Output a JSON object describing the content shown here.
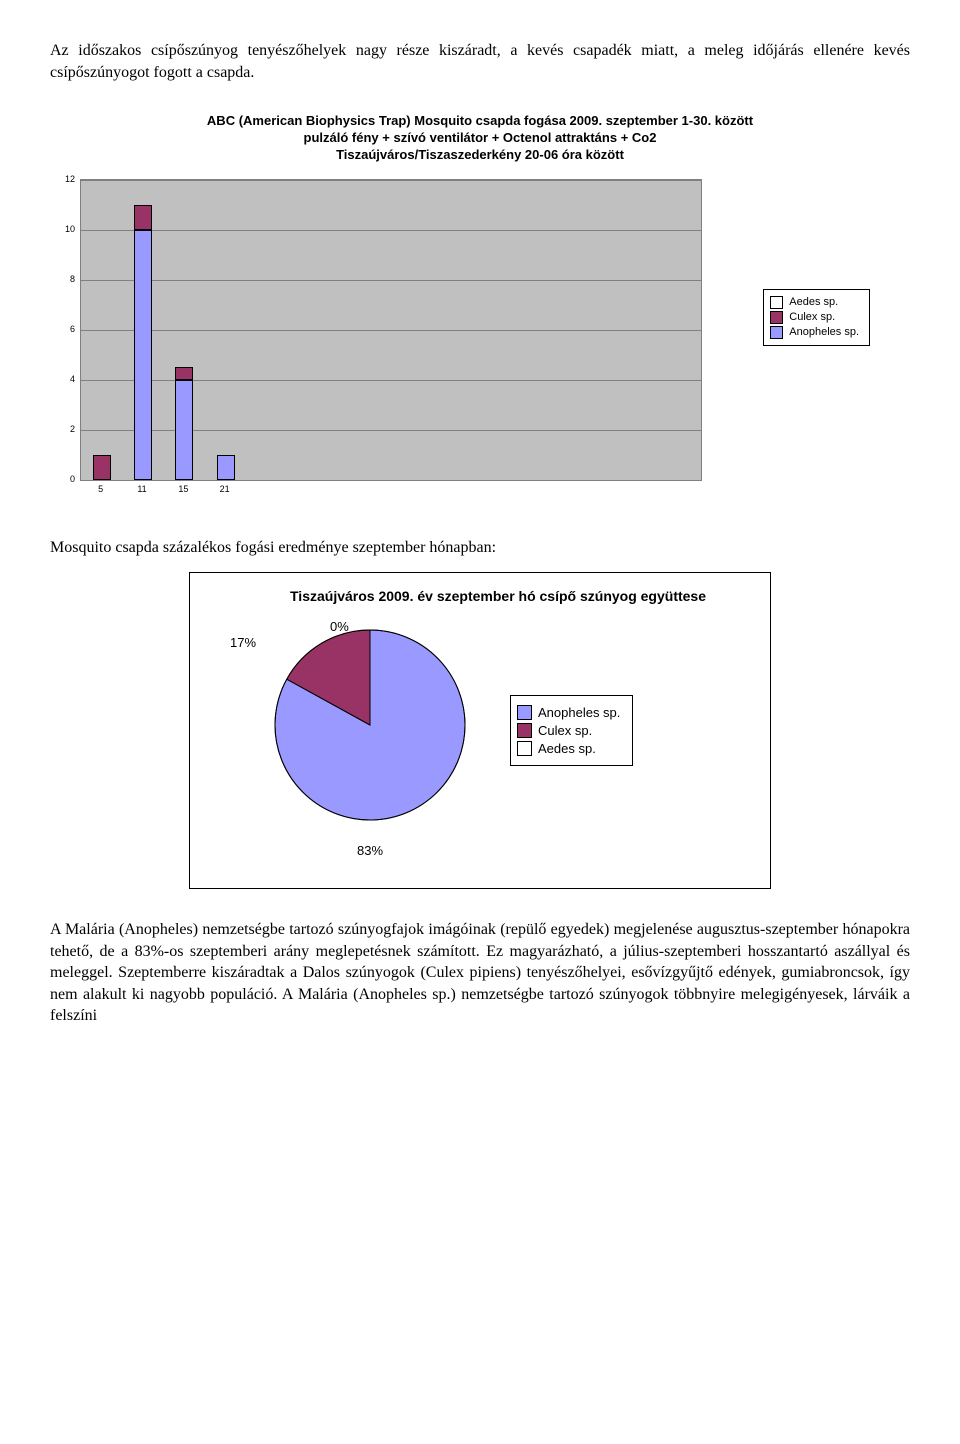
{
  "intro_paragraph": "Az időszakos csípőszúnyog tenyészőhelyek nagy része kiszáradt, a kevés csapadék miatt, a meleg időjárás ellenére kevés csípőszúnyogot fogott a csapda.",
  "bar_chart": {
    "type": "bar_stacked",
    "title_line1": "ABC (American Biophysics Trap) Mosquito csapda fogása 2009. szeptember 1-30. között",
    "title_line2": "pulzáló fény + szívó ventilátor + Octenol attraktáns + Co2",
    "title_line3": "Tiszaújváros/Tiszaszederkény 20-06 óra között",
    "ylim": [
      0,
      12
    ],
    "ytick_step": 2,
    "yticks": [
      0,
      2,
      4,
      6,
      8,
      10,
      12
    ],
    "x_labels": [
      "5",
      "11",
      "15",
      "21"
    ],
    "series_colors": {
      "aedes": "#ffffff",
      "culex": "#993366",
      "anopheles": "#9999ff"
    },
    "plot_bg": "#c0c0c0",
    "grid_color": "#808080",
    "legend": [
      {
        "label": "Aedes sp.",
        "color": "#ffffff"
      },
      {
        "label": "Culex sp.",
        "color": "#993366"
      },
      {
        "label": "Anopheles sp.",
        "color": "#9999ff"
      }
    ],
    "bars": [
      {
        "x": "5",
        "anopheles": 0,
        "culex": 1,
        "aedes": 0
      },
      {
        "x": "11",
        "anopheles": 10,
        "culex": 1,
        "aedes": 0
      },
      {
        "x": "15",
        "anopheles": 4,
        "culex": 0.5,
        "aedes": 0
      },
      {
        "x": "21",
        "anopheles": 1,
        "culex": 0,
        "aedes": 0
      }
    ]
  },
  "section_caption": "Mosquito csapda százalékos fogási eredménye szeptember hónapban:",
  "pie_chart": {
    "type": "pie",
    "title": "Tiszaújváros 2009. év szeptember hó csípő szúnyog együttese",
    "slices": [
      {
        "label": "Anopheles sp.",
        "value": 83,
        "pct": "83%",
        "color": "#9999ff"
      },
      {
        "label": "Culex sp.",
        "value": 17,
        "pct": "17%",
        "color": "#993366"
      },
      {
        "label": "Aedes sp.",
        "value": 0,
        "pct": "0%",
        "color": "#ffffff"
      }
    ],
    "label_17": "17%",
    "label_0": "0%",
    "label_83": "83%",
    "border_color": "#000000",
    "legend": [
      {
        "label": "Anopheles sp.",
        "color": "#9999ff"
      },
      {
        "label": "Culex sp.",
        "color": "#993366"
      },
      {
        "label": "Aedes sp.",
        "color": "#ffffff"
      }
    ]
  },
  "closing_paragraph": "A Malária (Anopheles) nemzetségbe tartozó szúnyogfajok imágóinak (repülő egyedek) megjelenése augusztus-szeptember hónapokra tehető, de a 83%-os szeptemberi arány meglepetésnek számított. Ez magyarázható, a július-szeptemberi hosszantartó aszállyal és meleggel. Szeptemberre kiszáradtak a Dalos szúnyogok (Culex pipiens) tenyészőhelyei, esővízgyűjtő edények, gumiabroncsok, így nem alakult ki nagyobb populáció. A Malária (Anopheles sp.) nemzetségbe tartozó szúnyogok többnyire melegigényesek, lárváik a felszíni"
}
